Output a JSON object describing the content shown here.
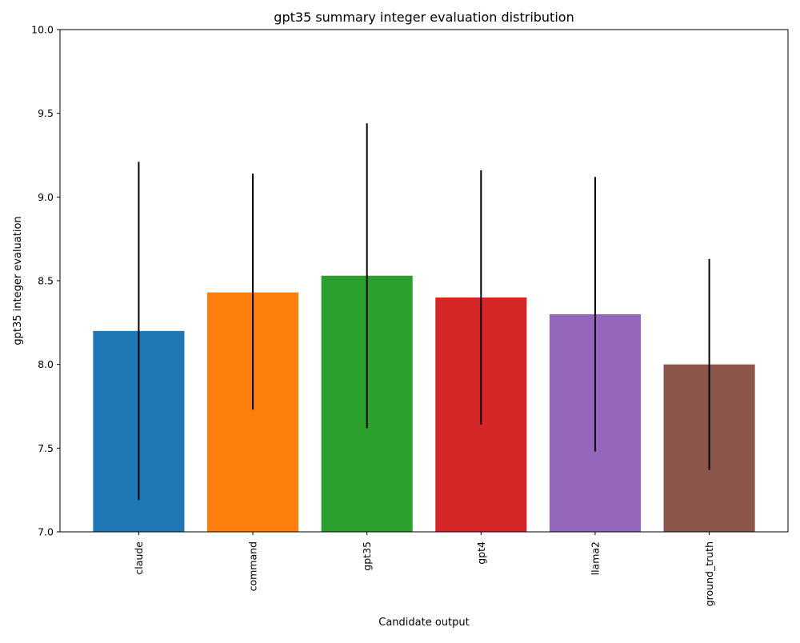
{
  "chart_data": {
    "type": "bar",
    "title": "gpt35 summary integer evaluation distribution",
    "xlabel": "Candidate output",
    "ylabel": "gpt35 integer evaluation",
    "categories": [
      "claude",
      "command",
      "gpt35",
      "gpt4",
      "llama2",
      "ground_truth"
    ],
    "values": [
      8.2,
      8.43,
      8.53,
      8.4,
      8.3,
      8.0
    ],
    "error_low": [
      7.19,
      7.73,
      7.62,
      7.64,
      7.48,
      7.37
    ],
    "error_high": [
      9.21,
      9.14,
      9.44,
      9.16,
      9.12,
      8.63
    ],
    "colors": [
      "#1f77b4",
      "#ff7f0e",
      "#2ca02c",
      "#d62728",
      "#9467bd",
      "#8c564b"
    ],
    "error_color": "#000000",
    "ylim": [
      7.0,
      10.0
    ],
    "yticks": [
      "7.0",
      "7.5",
      "8.0",
      "8.5",
      "9.0",
      "9.5",
      "10.0"
    ],
    "grid": false,
    "legend": "none",
    "xtick_rotation": "vertical"
  }
}
